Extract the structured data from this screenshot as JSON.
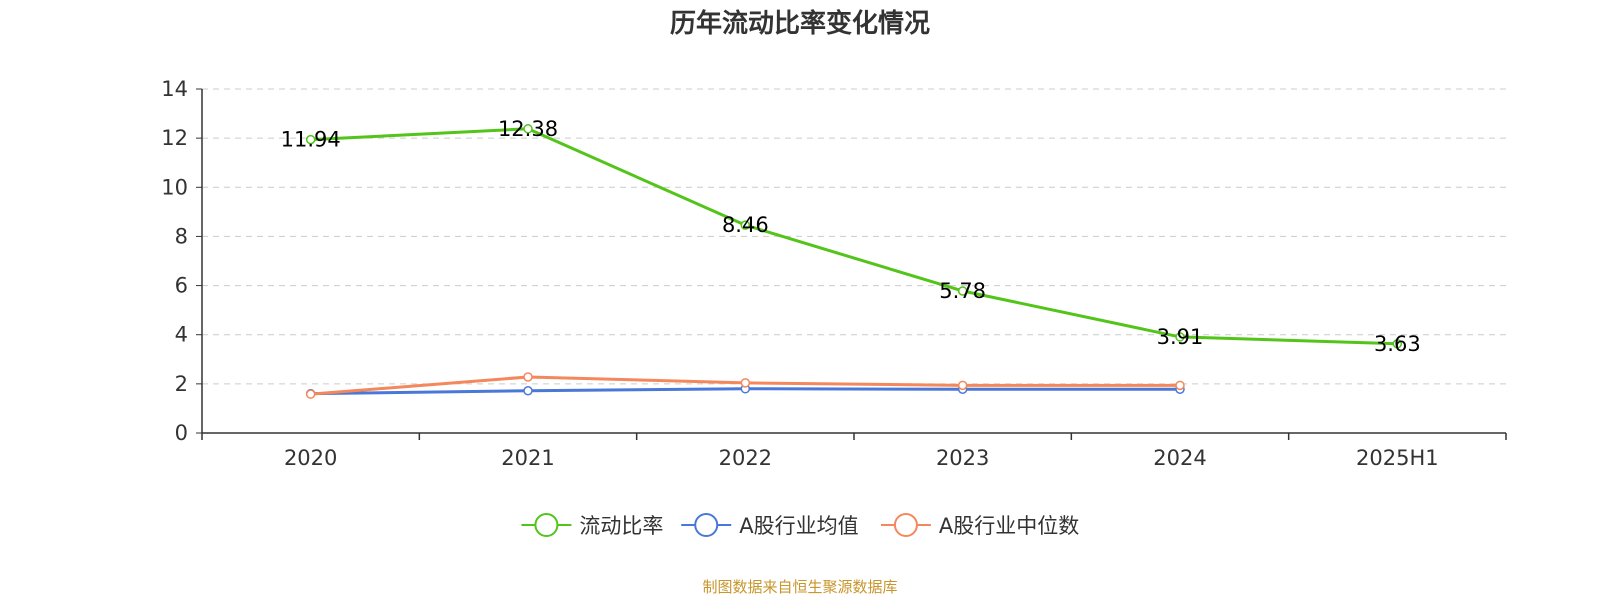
{
  "chart_data": {
    "type": "line",
    "title": "历年流动比率变化情况",
    "categories": [
      "2020",
      "2021",
      "2022",
      "2023",
      "2024",
      "2025H1"
    ],
    "ylim": [
      0,
      14
    ],
    "yticks": [
      0,
      2,
      4,
      6,
      8,
      10,
      12,
      14
    ],
    "ytick_labels": [
      "0",
      "2",
      "4",
      "6",
      "8",
      "10",
      "12",
      "14"
    ],
    "grid": "horizontal-dashed",
    "legend_position": "bottom-center",
    "series": [
      {
        "name": "流动比率",
        "color": "#52c41a",
        "values": [
          11.94,
          12.38,
          8.46,
          5.78,
          3.91,
          3.63
        ],
        "labels": [
          "11.94",
          "12.38",
          "8.46",
          "5.78",
          "3.91",
          "3.63"
        ]
      },
      {
        "name": "A股行业均值",
        "color": "#4a78d8",
        "values": [
          1.6,
          1.72,
          1.8,
          1.78,
          1.78,
          null
        ]
      },
      {
        "name": "A股行业中位数",
        "color": "#f5875c",
        "values": [
          1.58,
          2.28,
          2.04,
          1.94,
          1.94,
          null
        ]
      }
    ],
    "source": "制图数据来自恒生聚源数据库",
    "source_color": "#c8962a"
  }
}
